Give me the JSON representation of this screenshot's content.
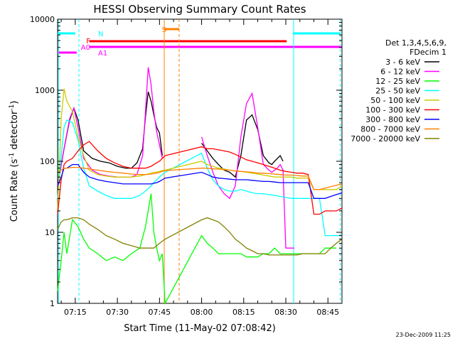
{
  "chart_data": {
    "type": "line",
    "title": "HESSI Observing Summary Count Rates",
    "xlabel": "Start Time (11-May-02 07:08:42)",
    "ylabel_main": "Count Rate (s",
    "ylabel_sup1": "-1",
    "ylabel_mid": " detector",
    "ylabel_sup2": "-1",
    "ylabel_end": ")",
    "ylog": true,
    "ylim": [
      1,
      10000
    ],
    "xlim_min": [
      428.7,
      530
    ],
    "y_ticks": [
      {
        "v": 1,
        "label": "1"
      },
      {
        "v": 10,
        "label": "10"
      },
      {
        "v": 100,
        "label": "100"
      },
      {
        "v": 1000,
        "label": "1000"
      },
      {
        "v": 10000,
        "label": "10000"
      }
    ],
    "x_ticks": [
      {
        "v": 435,
        "label": "07:15"
      },
      {
        "v": 450,
        "label": "07:30"
      },
      {
        "v": 465,
        "label": "07:45"
      },
      {
        "v": 480,
        "label": "08:00"
      },
      {
        "v": 495,
        "label": "08:15"
      },
      {
        "v": 510,
        "label": "08:30"
      },
      {
        "v": 525,
        "label": "08:45"
      }
    ],
    "legend_header": [
      "Det 1,3,4,5,6,9,",
      "FDecim 1"
    ],
    "legend_placement": "right",
    "series": [
      {
        "name": "3 - 6 keV",
        "color": "#000000",
        "x": [
          428.7,
          431,
          433,
          434.5,
          436,
          438,
          441,
          444,
          447,
          450,
          453,
          455,
          457,
          459,
          460,
          461,
          462,
          463,
          464,
          465,
          466,
          468,
          471,
          474,
          477,
          480,
          482,
          484,
          486,
          488,
          490,
          492,
          494,
          496,
          498,
          500,
          502,
          504,
          505,
          506,
          507,
          508,
          509
        ],
        "y": [
          45,
          150,
          380,
          560,
          380,
          140,
          110,
          100,
          95,
          85,
          80,
          80,
          95,
          150,
          420,
          950,
          700,
          450,
          300,
          250,
          120,
          null,
          null,
          null,
          null,
          180,
          140,
          110,
          90,
          75,
          70,
          60,
          120,
          380,
          450,
          280,
          120,
          95,
          90,
          100,
          110,
          120,
          100
        ]
      },
      {
        "name": "6 - 12 keV",
        "color": "#ff00ff",
        "x": [
          428.7,
          431,
          433,
          434.5,
          436,
          438,
          441,
          444,
          447,
          450,
          453,
          455,
          457,
          459,
          460,
          461,
          462,
          463,
          464,
          465,
          466,
          468,
          471,
          474,
          477,
          480,
          482,
          484,
          486,
          488,
          490,
          492,
          494,
          496,
          498,
          500,
          502,
          504,
          505,
          506,
          507,
          508,
          509,
          510,
          511,
          512,
          513
        ],
        "y": [
          45,
          150,
          400,
          560,
          300,
          110,
          75,
          65,
          62,
          60,
          60,
          60,
          65,
          120,
          500,
          2100,
          1200,
          500,
          260,
          170,
          110,
          null,
          null,
          null,
          null,
          220,
          120,
          70,
          45,
          35,
          30,
          45,
          220,
          650,
          900,
          300,
          90,
          75,
          70,
          75,
          80,
          90,
          75,
          6,
          6,
          6,
          6
        ]
      },
      {
        "name": "12 - 25 keV",
        "color": "#00ff00",
        "x": [
          428.7,
          430,
          431,
          432,
          434,
          436,
          438,
          440,
          443,
          446,
          449,
          452,
          455,
          458,
          460,
          462,
          463,
          464,
          465,
          466,
          467,
          480,
          482,
          484,
          486,
          488,
          490,
          492,
          494,
          496,
          498,
          500,
          502,
          504,
          506,
          508,
          510,
          512,
          514,
          516,
          518,
          520,
          522,
          524,
          526,
          528
        ],
        "y": [
          1.5,
          4,
          10,
          5,
          15,
          12,
          8,
          6,
          5,
          4,
          4.5,
          4,
          5,
          6,
          12,
          35,
          10,
          6,
          4,
          5,
          1,
          9,
          7,
          6,
          5,
          5,
          5,
          5,
          5,
          4.5,
          4.5,
          4.5,
          5,
          5,
          6,
          5,
          5,
          5,
          5,
          5,
          5,
          5,
          5,
          6,
          6,
          6
        ]
      },
      {
        "name": "25 - 50 keV",
        "color": "#00ffff",
        "x": [
          428.7,
          430,
          431,
          432,
          434,
          436,
          438,
          440,
          443,
          446,
          449,
          452,
          455,
          458,
          460,
          462,
          463,
          464,
          465,
          466,
          467,
          480,
          482,
          484,
          486,
          488,
          490,
          492,
          494,
          496,
          498,
          500,
          502,
          504,
          506,
          508,
          510,
          512,
          514,
          516,
          518,
          520,
          522,
          524,
          526,
          528,
          530
        ],
        "y": [
          30,
          120,
          300,
          380,
          350,
          200,
          80,
          45,
          38,
          33,
          30,
          30,
          30,
          33,
          38,
          45,
          50,
          55,
          60,
          65,
          70,
          130,
          80,
          55,
          45,
          40,
          38,
          38,
          40,
          38,
          36,
          35,
          35,
          34,
          33,
          32,
          31,
          30,
          30,
          30,
          30,
          30,
          30,
          9,
          9,
          9,
          9
        ]
      },
      {
        "name": "50 - 100 keV",
        "color": "#cccc00",
        "x": [
          428.7,
          430,
          431,
          432,
          434,
          436,
          438,
          440,
          443,
          446,
          449,
          452,
          455,
          458,
          460,
          462,
          463,
          464,
          465,
          466,
          467,
          480,
          482,
          484,
          486,
          488,
          490,
          492,
          494,
          496,
          498,
          500,
          502,
          504,
          506,
          508,
          510,
          512,
          514,
          516,
          518,
          520,
          522,
          524,
          526,
          528,
          530
        ],
        "y": [
          20,
          400,
          1050,
          700,
          500,
          220,
          120,
          75,
          65,
          62,
          60,
          60,
          60,
          62,
          65,
          68,
          70,
          70,
          72,
          74,
          75,
          100,
          90,
          85,
          80,
          78,
          75,
          73,
          72,
          70,
          68,
          66,
          64,
          62,
          60,
          60,
          60,
          60,
          58,
          58,
          58,
          40,
          40,
          40,
          40,
          40,
          45
        ]
      },
      {
        "name": "100 - 300 keV",
        "color": "#ff0000",
        "x": [
          428.7,
          430,
          431,
          432,
          434,
          436,
          438,
          440,
          443,
          446,
          449,
          452,
          455,
          458,
          460,
          462,
          463,
          464,
          465,
          466,
          467,
          480,
          482,
          484,
          486,
          488,
          490,
          492,
          494,
          496,
          498,
          500,
          502,
          504,
          506,
          508,
          510,
          512,
          514,
          516,
          518,
          520,
          522,
          524,
          526,
          528,
          530
        ],
        "y": [
          18,
          55,
          90,
          100,
          110,
          140,
          170,
          190,
          140,
          110,
          95,
          85,
          80,
          80,
          80,
          85,
          90,
          95,
          100,
          110,
          120,
          160,
          150,
          150,
          145,
          140,
          135,
          125,
          115,
          105,
          100,
          95,
          90,
          85,
          80,
          75,
          72,
          70,
          68,
          68,
          65,
          18,
          18,
          20,
          20,
          20,
          22
        ]
      },
      {
        "name": "300 - 800 keV",
        "color": "#0000ff",
        "x": [
          428.7,
          430,
          431,
          432,
          434,
          436,
          438,
          440,
          443,
          446,
          449,
          452,
          455,
          458,
          460,
          462,
          463,
          464,
          465,
          466,
          467,
          480,
          482,
          484,
          486,
          488,
          490,
          492,
          494,
          496,
          498,
          500,
          502,
          504,
          506,
          508,
          510,
          512,
          514,
          516,
          518,
          520,
          522,
          524,
          526,
          528,
          530
        ],
        "y": [
          45,
          60,
          80,
          80,
          90,
          90,
          70,
          60,
          55,
          52,
          50,
          48,
          48,
          48,
          48,
          48,
          49,
          50,
          52,
          55,
          58,
          70,
          65,
          60,
          58,
          57,
          56,
          55,
          55,
          55,
          54,
          53,
          52,
          52,
          51,
          50,
          50,
          50,
          50,
          50,
          50,
          30,
          30,
          30,
          32,
          34,
          36
        ]
      },
      {
        "name": "800 - 7000 keV",
        "color": "#ff8000",
        "x": [
          428.7,
          430,
          431,
          432,
          434,
          436,
          438,
          440,
          443,
          446,
          449,
          452,
          455,
          458,
          460,
          462,
          463,
          464,
          465,
          466,
          467,
          480,
          482,
          484,
          486,
          488,
          490,
          492,
          494,
          496,
          498,
          500,
          502,
          504,
          506,
          508,
          510,
          512,
          514,
          516,
          518,
          520,
          522,
          524,
          526,
          528,
          530
        ],
        "y": [
          70,
          75,
          80,
          80,
          82,
          82,
          80,
          78,
          75,
          72,
          70,
          68,
          66,
          65,
          65,
          66,
          67,
          68,
          70,
          72,
          74,
          80,
          80,
          78,
          78,
          76,
          75,
          73,
          72,
          71,
          70,
          68,
          68,
          67,
          66,
          65,
          64,
          64,
          63,
          62,
          62,
          40,
          40,
          42,
          44,
          46,
          48
        ]
      },
      {
        "name": "7000 - 20000 keV",
        "color": "#808000",
        "x": [
          428.7,
          430,
          431,
          432,
          434,
          436,
          438,
          440,
          443,
          446,
          449,
          452,
          455,
          458,
          460,
          462,
          463,
          464,
          465,
          466,
          467,
          480,
          482,
          484,
          486,
          488,
          490,
          492,
          494,
          496,
          498,
          500,
          502,
          504,
          506,
          508,
          510,
          512,
          514,
          516,
          518,
          520,
          522,
          524,
          526,
          528,
          530
        ],
        "y": [
          11,
          14,
          15,
          15,
          16,
          16,
          15,
          13,
          11,
          9,
          8,
          7,
          6.5,
          6,
          6,
          6,
          6,
          6.5,
          7,
          7.5,
          8,
          15,
          16,
          15,
          14,
          12,
          10,
          8,
          7,
          6,
          5.5,
          5,
          5,
          4.8,
          4.8,
          4.8,
          4.8,
          4.8,
          4.8,
          5,
          5,
          5,
          5,
          5,
          6,
          7,
          8
        ]
      }
    ],
    "annotations": [
      {
        "text": "N",
        "color": "#00ffff"
      },
      {
        "text": "F",
        "color": "#ff0000"
      },
      {
        "text": "A0",
        "color": "#ff00ff"
      },
      {
        "text": "A1",
        "color": "#ff00ff"
      },
      {
        "text": "S",
        "color": "#ff8000"
      }
    ],
    "timestamp": "23-Dec-2009 11:25"
  }
}
